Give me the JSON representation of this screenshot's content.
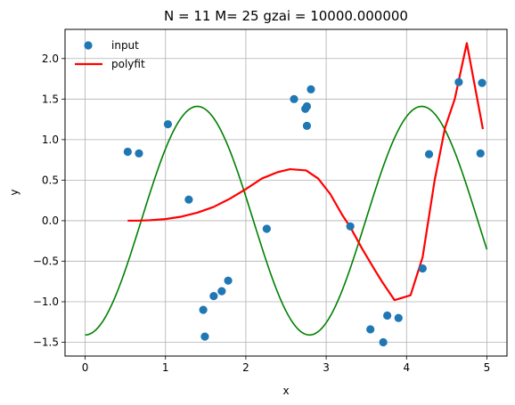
{
  "chart_data": {
    "type": "scatter",
    "title": "N = 11 M= 25  gzai = 10000.000000",
    "xlabel": "x",
    "ylabel": "y",
    "xlim": [
      -0.25,
      5.25
    ],
    "ylim": [
      -1.67,
      2.36
    ],
    "x_ticks": [
      0,
      1,
      2,
      3,
      4,
      5
    ],
    "y_ticks": [
      -1.5,
      -1.0,
      -0.5,
      0.0,
      0.5,
      1.0,
      1.5,
      2.0
    ],
    "x_tick_labels": [
      "0",
      "1",
      "2",
      "3",
      "4",
      "5"
    ],
    "y_tick_labels": [
      "−1.5",
      "−1.0",
      "−0.5",
      "0.0",
      "0.5",
      "1.0",
      "1.5",
      "2.0"
    ],
    "grid": true,
    "legend_position": "top-left",
    "series": [
      {
        "name": "input",
        "kind": "scatter",
        "color": "#1f77b4",
        "points": [
          [
            0.53,
            0.85
          ],
          [
            0.67,
            0.83
          ],
          [
            1.03,
            1.19
          ],
          [
            1.29,
            0.26
          ],
          [
            1.47,
            -1.1
          ],
          [
            1.49,
            -1.43
          ],
          [
            1.6,
            -0.93
          ],
          [
            1.7,
            -0.87
          ],
          [
            1.78,
            -0.74
          ],
          [
            2.26,
            -0.1
          ],
          [
            2.6,
            1.5
          ],
          [
            2.74,
            1.38
          ],
          [
            2.76,
            1.41
          ],
          [
            2.76,
            1.17
          ],
          [
            2.81,
            1.62
          ],
          [
            3.3,
            -0.07
          ],
          [
            3.55,
            -1.34
          ],
          [
            3.71,
            -1.5
          ],
          [
            3.76,
            -1.17
          ],
          [
            3.9,
            -1.2
          ],
          [
            4.2,
            -0.59
          ],
          [
            4.28,
            0.82
          ],
          [
            4.65,
            1.71
          ],
          [
            4.92,
            0.83
          ],
          [
            4.94,
            1.7
          ]
        ]
      },
      {
        "name": "polyfit",
        "kind": "line",
        "color": "#ff0000",
        "points": [
          [
            0.53,
            0.0
          ],
          [
            0.65,
            0.0
          ],
          [
            0.8,
            0.005
          ],
          [
            1.0,
            0.02
          ],
          [
            1.2,
            0.05
          ],
          [
            1.4,
            0.1
          ],
          [
            1.6,
            0.17
          ],
          [
            1.8,
            0.27
          ],
          [
            2.0,
            0.39
          ],
          [
            2.2,
            0.52
          ],
          [
            2.4,
            0.6
          ],
          [
            2.55,
            0.635
          ],
          [
            2.75,
            0.62
          ],
          [
            2.9,
            0.52
          ],
          [
            3.05,
            0.33
          ],
          [
            3.2,
            0.07
          ],
          [
            3.3,
            -0.08
          ],
          [
            3.45,
            -0.35
          ],
          [
            3.6,
            -0.6
          ],
          [
            3.7,
            -0.76
          ],
          [
            3.85,
            -0.98
          ],
          [
            4.05,
            -0.92
          ],
          [
            4.2,
            -0.45
          ],
          [
            4.35,
            0.5
          ],
          [
            4.48,
            1.15
          ],
          [
            4.6,
            1.5
          ],
          [
            4.75,
            2.19
          ],
          [
            4.95,
            1.13
          ]
        ]
      },
      {
        "kind": "curve",
        "color": "#008000",
        "function": "sin(2.25*x - pi/2) * 1.41",
        "x_range": [
          0,
          5
        ],
        "amplitude": 1.41,
        "frequency": 2.25,
        "phase": -1.5708
      }
    ]
  }
}
